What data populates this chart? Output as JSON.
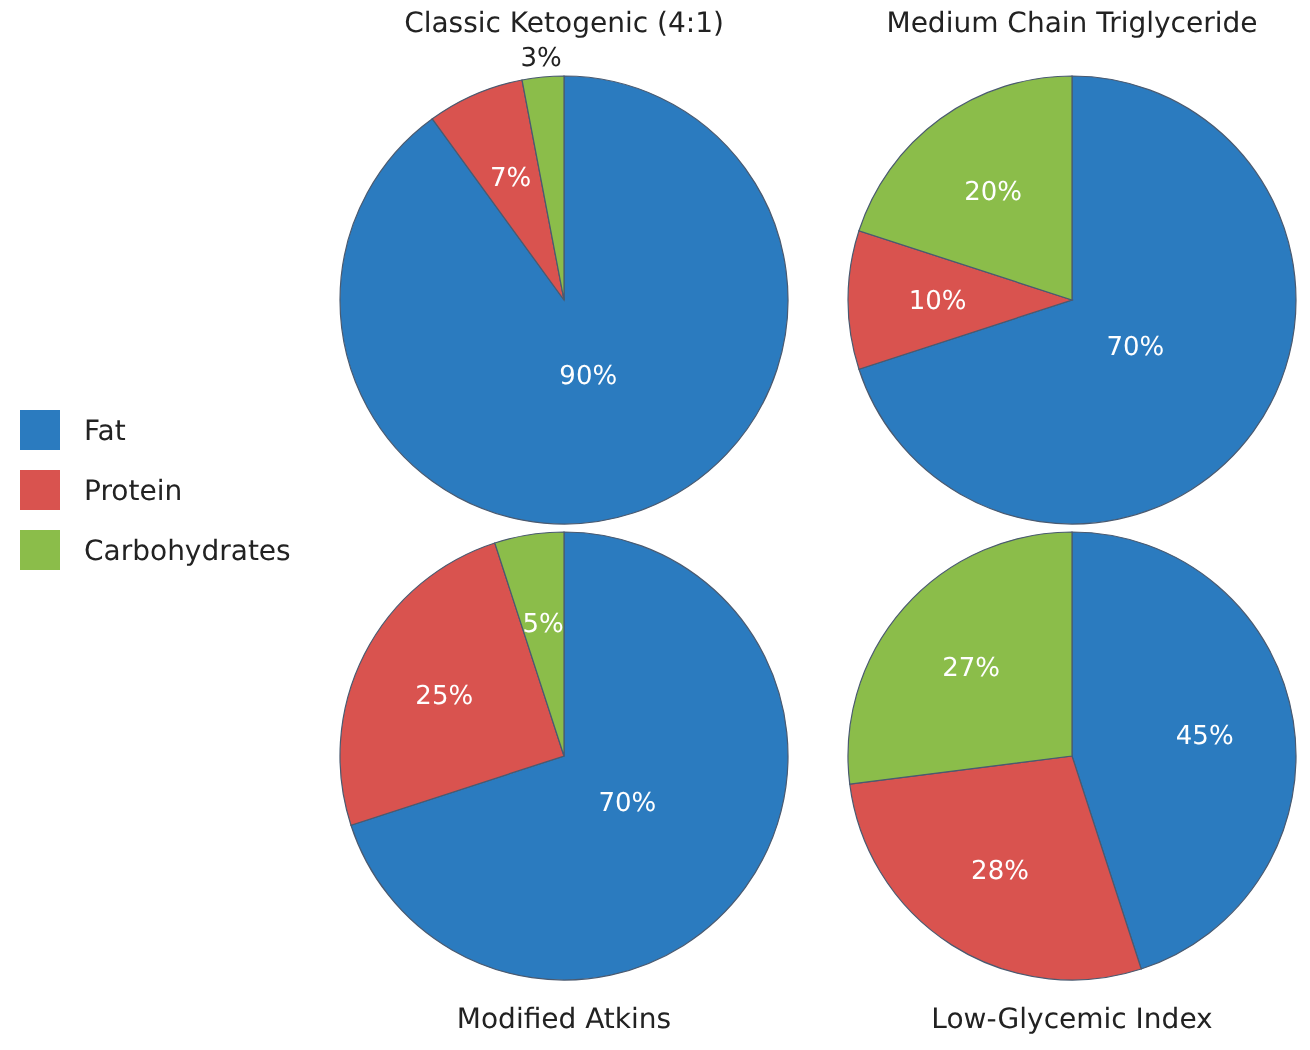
{
  "chart_data": [
    {
      "type": "pie",
      "title": "Classic Ketogenic (4:1)",
      "categories": [
        "Fat",
        "Protein",
        "Carbohydrates"
      ],
      "values": [
        90,
        7,
        3
      ],
      "colors": [
        "#2b7bbf",
        "#d9534f",
        "#8bbd4a"
      ],
      "value_labels": [
        "90%",
        "7%",
        "3%"
      ],
      "legend": "left"
    },
    {
      "type": "pie",
      "title": "Medium Chain Triglyceride",
      "categories": [
        null,
        null,
        null
      ],
      "values": [
        70,
        10,
        20
      ],
      "colors": [
        "#2b7bbf",
        "#d9534f",
        "#8bbd4a"
      ],
      "value_labels": [
        "70%",
        "10%",
        "20%"
      ]
    },
    {
      "type": "pie",
      "title": "Modified Atkins",
      "categories": [
        null,
        null,
        null
      ],
      "values": [
        70,
        25,
        5
      ],
      "colors": [
        "#2b7bbf",
        "#d9534f",
        "#8bbd4a"
      ],
      "value_labels": [
        "70%",
        "25%",
        "5%"
      ]
    },
    {
      "type": "pie",
      "title": "Low-Glycemic Index",
      "categories": [
        null,
        null,
        null
      ],
      "values": [
        45,
        28,
        27
      ],
      "colors": [
        "#2b7bbf",
        "#d9534f",
        "#8bbd4a"
      ],
      "value_labels": [
        "45%",
        "28%",
        "27%"
      ]
    }
  ]
}
